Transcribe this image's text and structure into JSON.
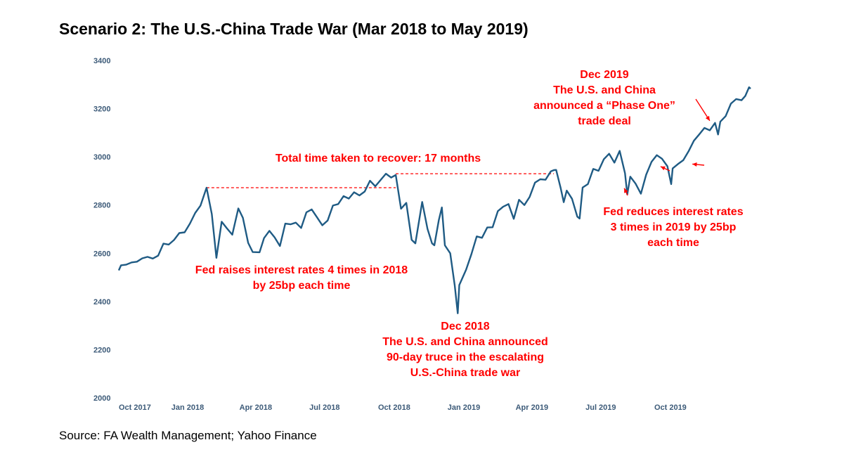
{
  "title": "Scenario 2: The U.S.-China Trade War (Mar 2018 to May 2019)",
  "source": "Source: FA Wealth Management; Yahoo Finance",
  "colors": {
    "line": "#1f5b84",
    "annotation": "#ff0000",
    "axis_text": "#3c5a78"
  },
  "chart_data": {
    "type": "line",
    "title": "Scenario 2: The U.S.-China Trade War (Mar 2018 to May 2019)",
    "xlabel": "",
    "ylabel": "",
    "ylim": [
      2000,
      3400
    ],
    "xlim": [
      "2017-10-02",
      "2020-01-15"
    ],
    "y_ticks": [
      2000,
      2200,
      2400,
      2600,
      2800,
      3000,
      3200,
      3400
    ],
    "x_ticks": [
      {
        "date": "2017-10-01",
        "label": "Oct 2017"
      },
      {
        "date": "2018-01-01",
        "label": "Jan 2018"
      },
      {
        "date": "2018-04-01",
        "label": "Apr 2018"
      },
      {
        "date": "2018-07-01",
        "label": "Jul 2018"
      },
      {
        "date": "2018-10-01",
        "label": "Oct 2018"
      },
      {
        "date": "2019-01-01",
        "label": "Jan 2019"
      },
      {
        "date": "2019-04-01",
        "label": "Apr 2019"
      },
      {
        "date": "2019-07-01",
        "label": "Jul 2019"
      },
      {
        "date": "2019-10-01",
        "label": "Oct 2019"
      }
    ],
    "grid": false,
    "series": [
      {
        "name": "",
        "points": [
          [
            "2017-10-02",
            2529
          ],
          [
            "2017-10-05",
            2550
          ],
          [
            "2017-10-12",
            2553
          ],
          [
            "2017-10-19",
            2562
          ],
          [
            "2017-10-26",
            2565
          ],
          [
            "2017-11-02",
            2579
          ],
          [
            "2017-11-09",
            2585
          ],
          [
            "2017-11-16",
            2578
          ],
          [
            "2017-11-23",
            2590
          ],
          [
            "2017-11-30",
            2640
          ],
          [
            "2017-12-07",
            2636
          ],
          [
            "2017-12-14",
            2655
          ],
          [
            "2017-12-21",
            2684
          ],
          [
            "2017-12-28",
            2687
          ],
          [
            "2018-01-04",
            2723
          ],
          [
            "2018-01-11",
            2767
          ],
          [
            "2018-01-18",
            2798
          ],
          [
            "2018-01-26",
            2872
          ],
          [
            "2018-02-02",
            2762
          ],
          [
            "2018-02-08",
            2581
          ],
          [
            "2018-02-15",
            2731
          ],
          [
            "2018-02-22",
            2703
          ],
          [
            "2018-03-01",
            2677
          ],
          [
            "2018-03-09",
            2786
          ],
          [
            "2018-03-15",
            2747
          ],
          [
            "2018-03-22",
            2643
          ],
          [
            "2018-03-28",
            2605
          ],
          [
            "2018-04-06",
            2604
          ],
          [
            "2018-04-12",
            2663
          ],
          [
            "2018-04-19",
            2693
          ],
          [
            "2018-04-26",
            2666
          ],
          [
            "2018-05-03",
            2630
          ],
          [
            "2018-05-10",
            2723
          ],
          [
            "2018-05-17",
            2720
          ],
          [
            "2018-05-24",
            2727
          ],
          [
            "2018-05-31",
            2705
          ],
          [
            "2018-06-07",
            2770
          ],
          [
            "2018-06-14",
            2782
          ],
          [
            "2018-06-21",
            2749
          ],
          [
            "2018-06-28",
            2716
          ],
          [
            "2018-07-05",
            2736
          ],
          [
            "2018-07-12",
            2798
          ],
          [
            "2018-07-19",
            2804
          ],
          [
            "2018-07-26",
            2837
          ],
          [
            "2018-08-02",
            2827
          ],
          [
            "2018-08-09",
            2853
          ],
          [
            "2018-08-16",
            2840
          ],
          [
            "2018-08-23",
            2856
          ],
          [
            "2018-08-30",
            2901
          ],
          [
            "2018-09-06",
            2878
          ],
          [
            "2018-09-13",
            2904
          ],
          [
            "2018-09-20",
            2930
          ],
          [
            "2018-09-27",
            2914
          ],
          [
            "2018-10-03",
            2925
          ],
          [
            "2018-10-10",
            2785
          ],
          [
            "2018-10-17",
            2809
          ],
          [
            "2018-10-24",
            2656
          ],
          [
            "2018-10-29",
            2641
          ],
          [
            "2018-11-07",
            2813
          ],
          [
            "2018-11-14",
            2701
          ],
          [
            "2018-11-20",
            2641
          ],
          [
            "2018-11-23",
            2633
          ],
          [
            "2018-11-29",
            2738
          ],
          [
            "2018-12-03",
            2790
          ],
          [
            "2018-12-07",
            2633
          ],
          [
            "2018-12-14",
            2600
          ],
          [
            "2018-12-20",
            2467
          ],
          [
            "2018-12-24",
            2351
          ],
          [
            "2018-12-26",
            2468
          ],
          [
            "2019-01-04",
            2532
          ],
          [
            "2019-01-11",
            2596
          ],
          [
            "2019-01-18",
            2670
          ],
          [
            "2019-01-25",
            2664
          ],
          [
            "2019-02-01",
            2707
          ],
          [
            "2019-02-08",
            2708
          ],
          [
            "2019-02-15",
            2775
          ],
          [
            "2019-02-22",
            2793
          ],
          [
            "2019-03-01",
            2804
          ],
          [
            "2019-03-08",
            2743
          ],
          [
            "2019-03-15",
            2822
          ],
          [
            "2019-03-22",
            2800
          ],
          [
            "2019-03-29",
            2834
          ],
          [
            "2019-04-05",
            2893
          ],
          [
            "2019-04-12",
            2907
          ],
          [
            "2019-04-19",
            2905
          ],
          [
            "2019-04-26",
            2940
          ],
          [
            "2019-04-30",
            2945
          ],
          [
            "2019-05-03",
            2946
          ],
          [
            "2019-05-09",
            2870
          ],
          [
            "2019-05-13",
            2812
          ],
          [
            "2019-05-17",
            2860
          ],
          [
            "2019-05-24",
            2826
          ],
          [
            "2019-05-31",
            2752
          ],
          [
            "2019-06-03",
            2744
          ],
          [
            "2019-06-07",
            2873
          ],
          [
            "2019-06-14",
            2887
          ],
          [
            "2019-06-21",
            2950
          ],
          [
            "2019-06-28",
            2942
          ],
          [
            "2019-07-05",
            2990
          ],
          [
            "2019-07-12",
            3013
          ],
          [
            "2019-07-19",
            2976
          ],
          [
            "2019-07-26",
            3025
          ],
          [
            "2019-08-02",
            2932
          ],
          [
            "2019-08-05",
            2844
          ],
          [
            "2019-08-09",
            2918
          ],
          [
            "2019-08-16",
            2889
          ],
          [
            "2019-08-23",
            2847
          ],
          [
            "2019-08-30",
            2926
          ],
          [
            "2019-09-06",
            2979
          ],
          [
            "2019-09-13",
            3007
          ],
          [
            "2019-09-20",
            2992
          ],
          [
            "2019-09-27",
            2961
          ],
          [
            "2019-10-02",
            2887
          ],
          [
            "2019-10-04",
            2952
          ],
          [
            "2019-10-11",
            2970
          ],
          [
            "2019-10-18",
            2986
          ],
          [
            "2019-10-25",
            3023
          ],
          [
            "2019-11-01",
            3067
          ],
          [
            "2019-11-08",
            3093
          ],
          [
            "2019-11-15",
            3120
          ],
          [
            "2019-11-22",
            3110
          ],
          [
            "2019-11-29",
            3141
          ],
          [
            "2019-12-03",
            3093
          ],
          [
            "2019-12-06",
            3146
          ],
          [
            "2019-12-13",
            3169
          ],
          [
            "2019-12-20",
            3221
          ],
          [
            "2019-12-27",
            3240
          ],
          [
            "2020-01-03",
            3235
          ],
          [
            "2020-01-08",
            3253
          ],
          [
            "2020-01-13",
            3289
          ],
          [
            "2020-01-15",
            3283
          ]
        ]
      }
    ],
    "reference_lines": [
      {
        "from": [
          "2018-01-26",
          2872
        ],
        "to": [
          "2018-10-03",
          2872
        ],
        "style": "dashed"
      },
      {
        "from": [
          "2018-10-03",
          2930
        ],
        "to": [
          "2019-04-30",
          2930
        ],
        "style": "dashed"
      }
    ],
    "annotations": [
      {
        "id": "recover",
        "lines": [
          "Total time taken to recover: 17 months"
        ]
      },
      {
        "id": "fed_raises",
        "lines": [
          "Fed raises interest rates 4 times in 2018",
          "by 25bp each time"
        ]
      },
      {
        "id": "truce",
        "lines": [
          "Dec 2018",
          "The U.S. and China announced",
          "90-day truce in the escalating",
          "U.S.-China trade war"
        ]
      },
      {
        "id": "phase_one",
        "lines": [
          "Dec 2019",
          "The U.S. and China",
          "announced a “Phase One”",
          "trade deal"
        ]
      },
      {
        "id": "fed_reduces",
        "lines": [
          "Fed reduces interest rates",
          "3 times in 2019 by 25bp",
          "each time"
        ]
      }
    ],
    "arrows": [
      {
        "id": "phase_one_arrow",
        "target": [
          "2019-11-22",
          3150
        ]
      },
      {
        "id": "cut1",
        "target": [
          "2019-08-01",
          2870
        ]
      },
      {
        "id": "cut2",
        "target": [
          "2019-09-18",
          2960
        ]
      },
      {
        "id": "cut3",
        "target": [
          "2019-10-30",
          2970
        ]
      }
    ]
  }
}
